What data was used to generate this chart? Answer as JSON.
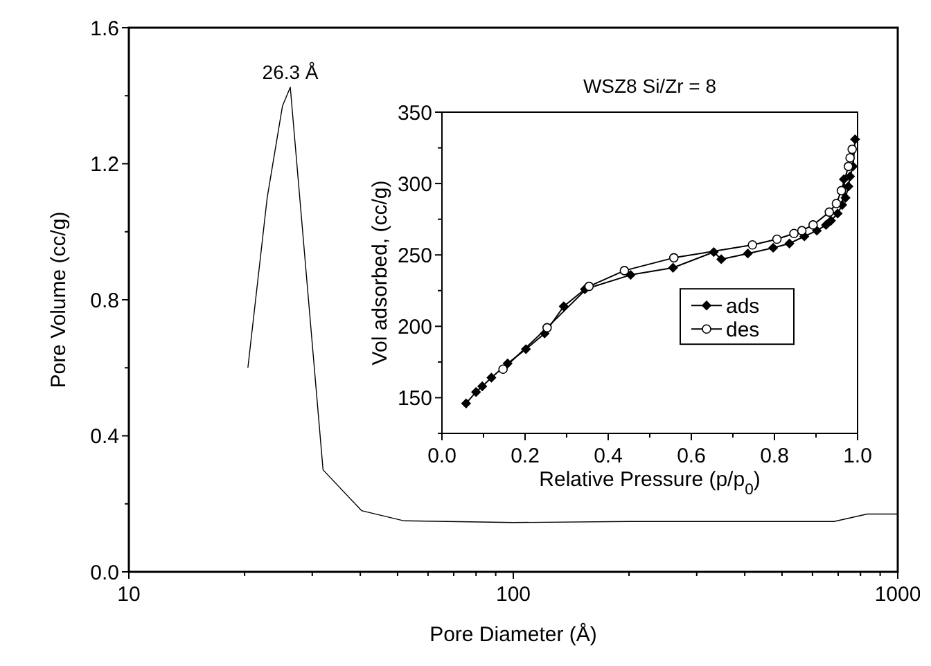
{
  "chart_data": [
    {
      "type": "line",
      "xlabel": "Pore Diameter (Å)",
      "ylabel": "Pore Volume (cc/g)",
      "log": "x",
      "xlim": [
        10,
        1000
      ],
      "ylim": [
        0,
        1.6
      ],
      "xticks": [
        10,
        {
          "value": 20,
          "label": null
        },
        {
          "value": 30,
          "label": null
        },
        {
          "value": 40,
          "label": null
        },
        {
          "value": 50,
          "label": null
        },
        {
          "value": 60,
          "label": null
        },
        {
          "value": 70,
          "label": null
        },
        {
          "value": 80,
          "label": null
        },
        {
          "value": 90,
          "label": null
        },
        100,
        {
          "value": 200,
          "label": null
        },
        {
          "value": 300,
          "label": null
        },
        {
          "value": 400,
          "label": null
        },
        {
          "value": 500,
          "label": null
        },
        {
          "value": 600,
          "label": null
        },
        {
          "value": 700,
          "label": null
        },
        {
          "value": 800,
          "label": null
        },
        {
          "value": 900,
          "label": null
        },
        1000
      ],
      "yticks": [
        {
          "value": 0,
          "label": "0.0"
        },
        {
          "value": 0.2,
          "label": null
        },
        0.4,
        {
          "value": 0.6,
          "label": null
        },
        0.8,
        {
          "value": 1.0,
          "label": null
        },
        1.2,
        {
          "value": 1.4,
          "label": null
        },
        1.6
      ],
      "series": [
        {
          "color": "#000000",
          "x": [
            20.4,
            22.9,
            25.1,
            26.3,
            32,
            40.3,
            52,
            100,
            200,
            400,
            683,
            833,
            1000
          ],
          "values": [
            0.6,
            1.1,
            1.37,
            1.425,
            0.3,
            0.18,
            0.15,
            0.145,
            0.148,
            0.148,
            0.148,
            0.17,
            0.17
          ]
        }
      ],
      "annotations": [
        {
          "text": "26.3 Å",
          "x": 26.3,
          "y": 1.425
        }
      ]
    },
    {
      "type": "line",
      "title": "WSZ8 Si/Zr = 8",
      "xlabel": "Relative Pressure (p/p$_{0}$)",
      "ylabel": "Vol adsorbed, (cc/g)",
      "xlim": [
        0,
        1
      ],
      "ylim": [
        125,
        350
      ],
      "legend": "right",
      "xticks": [
        {
          "value": 0,
          "label": "0.0"
        },
        {
          "value": 0.1,
          "label": null
        },
        0.2,
        {
          "value": 0.3,
          "label": null
        },
        0.4,
        {
          "value": 0.5,
          "label": null
        },
        0.6,
        {
          "value": 0.7,
          "label": null
        },
        0.8,
        {
          "value": 0.9,
          "label": null
        },
        {
          "value": 1,
          "label": "1.0"
        }
      ],
      "yticks": [
        {
          "value": 125,
          "label": null
        },
        150,
        {
          "value": 175,
          "label": null
        },
        200,
        {
          "value": 225,
          "label": null
        },
        250,
        {
          "value": 275,
          "label": null
        },
        300,
        {
          "value": 325,
          "label": null
        },
        350
      ],
      "series": [
        {
          "name": "ads",
          "color": "#000000",
          "marker": "diamond",
          "x": [
            0.058,
            0.082,
            0.097,
            0.119,
            0.158,
            0.202,
            0.247,
            0.293,
            0.344,
            0.454,
            0.556,
            0.654,
            0.672,
            0.736,
            0.797,
            0.836,
            0.872,
            0.902,
            0.924,
            0.936,
            0.952,
            0.963,
            0.967,
            0.971,
            0.978,
            0.982,
            0.989,
            0.994
          ],
          "values": [
            146,
            154,
            158,
            164,
            174,
            184,
            195,
            214,
            226,
            236,
            241,
            252,
            247,
            251,
            255,
            258,
            263,
            267,
            271,
            274,
            279,
            285,
            303,
            290,
            298,
            305,
            312,
            331
          ]
        },
        {
          "name": "des",
          "color": "#000000",
          "marker": "circle",
          "x": [
            0.147,
            0.253,
            0.354,
            0.439,
            0.558,
            0.747,
            0.806,
            0.847,
            0.866,
            0.893,
            0.932,
            0.949,
            0.961,
            0.978,
            0.982,
            0.987
          ],
          "values": [
            170,
            199,
            228,
            239,
            248,
            257,
            261,
            265,
            267,
            271,
            280,
            286,
            295,
            312,
            318,
            324
          ]
        }
      ]
    }
  ]
}
